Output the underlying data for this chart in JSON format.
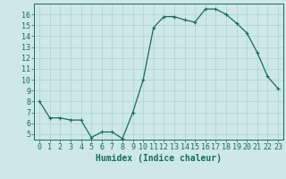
{
  "x": [
    0,
    1,
    2,
    3,
    4,
    5,
    6,
    7,
    8,
    9,
    10,
    11,
    12,
    13,
    14,
    15,
    16,
    17,
    18,
    19,
    20,
    21,
    22,
    23
  ],
  "y": [
    8,
    6.5,
    6.5,
    6.3,
    6.3,
    4.7,
    5.2,
    5.2,
    4.6,
    7,
    10,
    14.8,
    15.8,
    15.8,
    15.5,
    15.3,
    16.5,
    16.5,
    16.0,
    15.2,
    14.3,
    12.5,
    10.3,
    9.2
  ],
  "line_color": "#1a6b5e",
  "marker": "+",
  "marker_size": 3,
  "marker_linewidth": 0.8,
  "bg_color": "#cde8e5",
  "grid_color": "#a8d4d0",
  "xlabel": "Humidex (Indice chaleur)",
  "xlabel_fontsize": 7,
  "tick_fontsize": 6,
  "ylim": [
    4.5,
    17
  ],
  "yticks": [
    5,
    6,
    7,
    8,
    9,
    10,
    11,
    12,
    13,
    14,
    15,
    16
  ],
  "xlim": [
    -0.5,
    23.5
  ],
  "xticks": [
    0,
    1,
    2,
    3,
    4,
    5,
    6,
    7,
    8,
    9,
    10,
    11,
    12,
    13,
    14,
    15,
    16,
    17,
    18,
    19,
    20,
    21,
    22,
    23
  ],
  "linewidth": 0.9
}
